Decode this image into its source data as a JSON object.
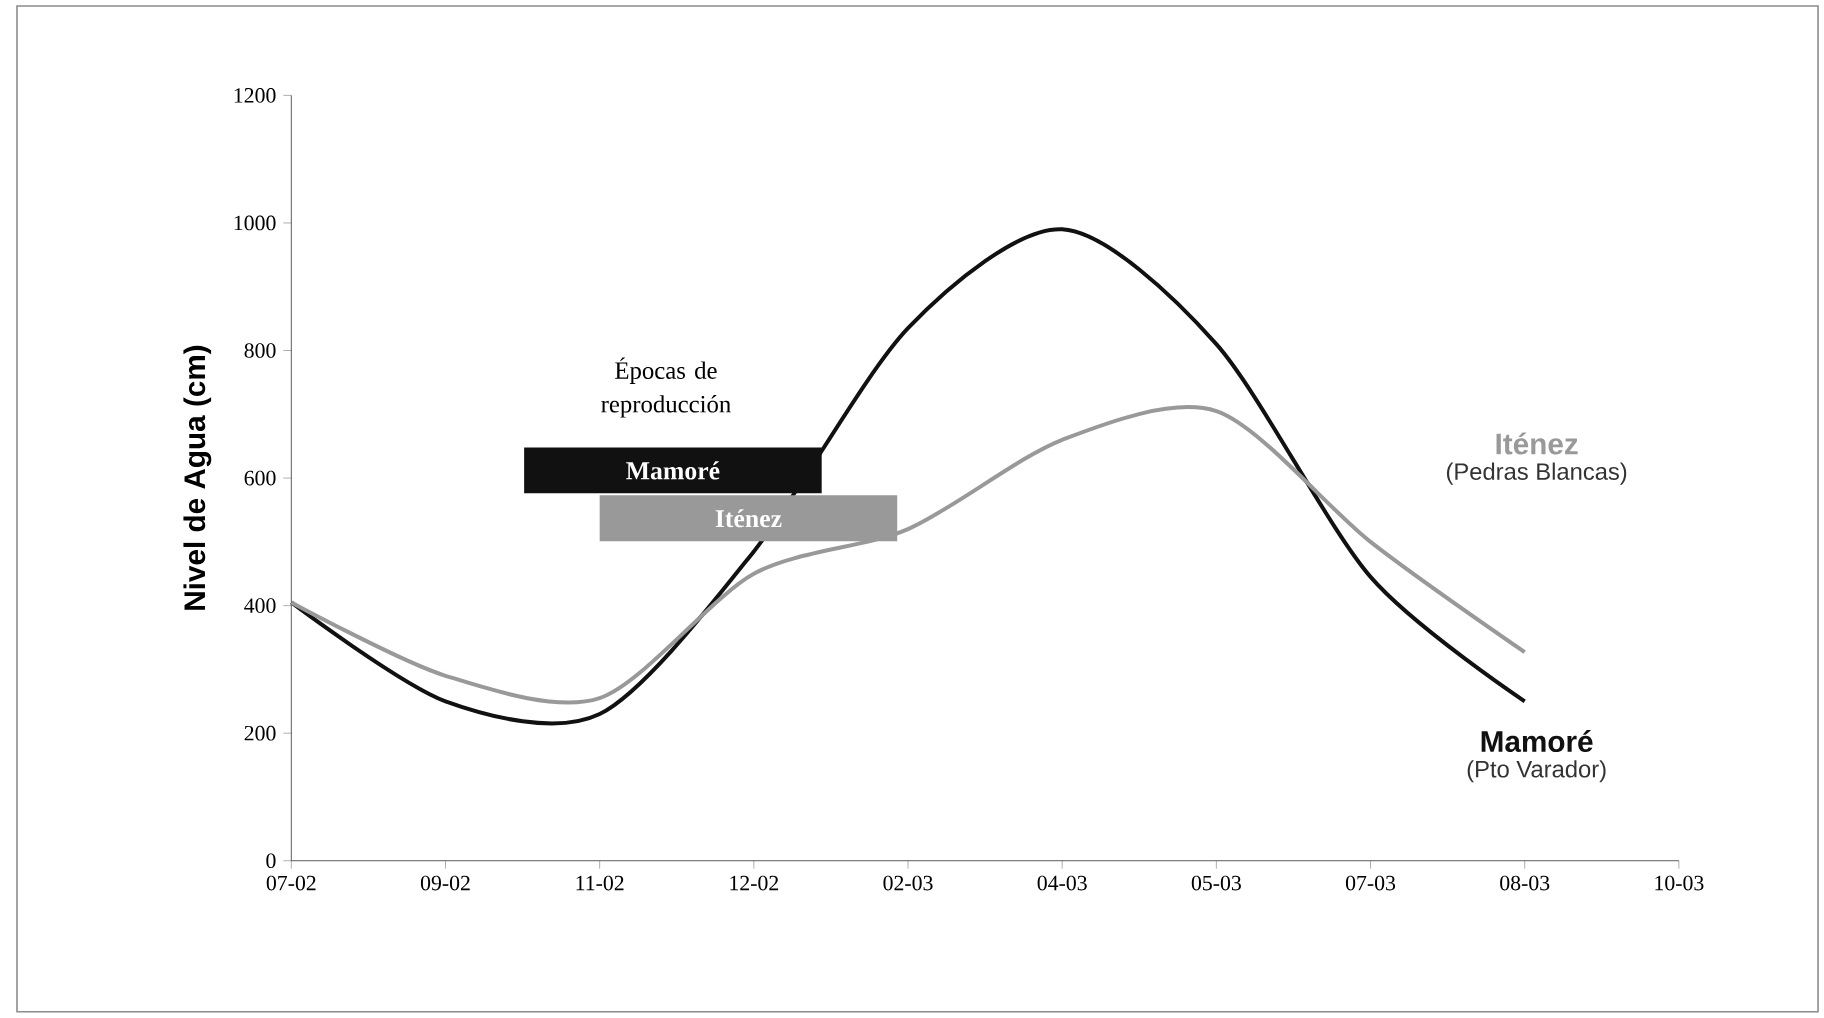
{
  "chart_data": {
    "type": "line",
    "ylabel": "Nivel de  Agua (cm)",
    "categories": [
      "07-02",
      "09-02",
      "11-02",
      "12-02",
      "02-03",
      "04-03",
      "05-03",
      "07-03",
      "08-03",
      "10-03"
    ],
    "ylim": [
      0,
      1200
    ],
    "yticks": [
      0,
      200,
      400,
      600,
      800,
      1000,
      1200
    ],
    "series": [
      {
        "name": "Mamoré",
        "color": "#111111",
        "values": [
          405,
          250,
          230,
          485,
          835,
          990,
          810,
          445,
          250,
          null
        ]
      },
      {
        "name": "Iténez",
        "color": "#999999",
        "values": [
          405,
          290,
          255,
          450,
          520,
          660,
          705,
          500,
          327,
          null
        ]
      }
    ],
    "annotations": [
      "Épocas de reproducción",
      "Mamoré",
      "Iténez",
      "(Pto Varador)",
      "(Pedras Blancas)"
    ],
    "grid": false,
    "legend": false,
    "marker": "none",
    "line_style": "solid"
  }
}
